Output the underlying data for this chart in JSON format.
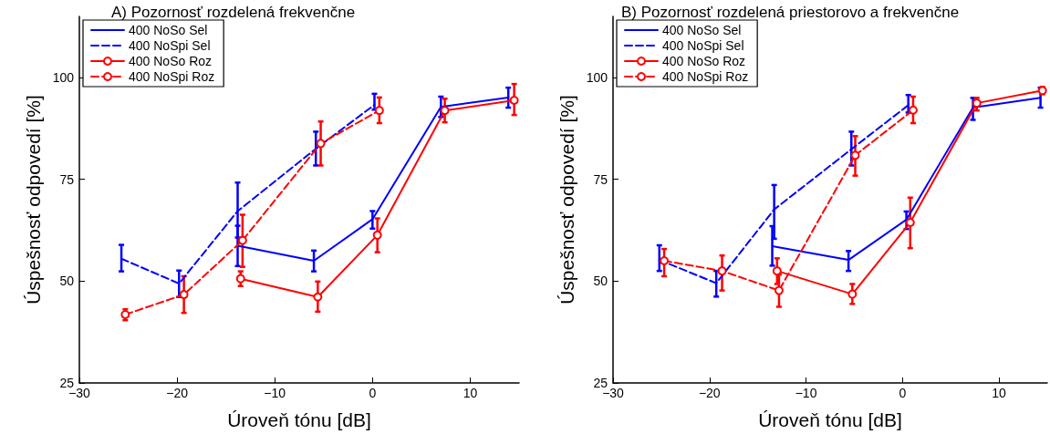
{
  "chart_data": [
    {
      "type": "line",
      "title": "A) Pozornosť rozdelená frekvenčne",
      "xlabel": "Úroveň tónu [dB]",
      "ylabel": "Úspešnosť odpovedí [%]",
      "xlim": [
        -30,
        15
      ],
      "xticks": [
        {
          "value": -30,
          "label": "−30"
        },
        {
          "value": -20,
          "label": "−20"
        },
        {
          "value": -10,
          "label": "−10"
        },
        {
          "value": 0,
          "label": "0"
        },
        {
          "value": 10,
          "label": "10"
        }
      ],
      "ylim": [
        25,
        115
      ],
      "yticks": [
        25,
        50,
        75,
        100
      ],
      "grid": false,
      "legend": "top left",
      "series": [
        {
          "name": "400 NoSo Sel",
          "color": "#0000ff",
          "line_style": "solid",
          "marker": "none",
          "x": [
            -13.8,
            -6.0,
            0,
            7.0,
            13.9
          ],
          "values": [
            58.7,
            55.0,
            65.2,
            92.8,
            95.1
          ],
          "errors": [
            [
              53.7,
              63.6
            ],
            [
              52.4,
              57.5
            ],
            [
              62.9,
              67.2
            ],
            [
              90.3,
              95.3
            ],
            [
              92.6,
              97.5
            ]
          ]
        },
        {
          "name": "400 NoSpi Sel",
          "color": "#0000ff",
          "line_style": "dashed",
          "marker": "none",
          "x": [
            -25.7,
            -19.8,
            -13.8,
            -5.8,
            0.2
          ],
          "values": [
            55.5,
            49.4,
            67.2,
            82.5,
            93.3
          ],
          "errors": [
            [
              52.4,
              58.9
            ],
            [
              46.1,
              52.6
            ],
            [
              60.7,
              74.2
            ],
            [
              78.4,
              86.7
            ],
            [
              92.1,
              96.0
            ]
          ]
        },
        {
          "name": "400 NoSo Roz",
          "color": "#ff0000",
          "line_style": "solid",
          "marker": "circle",
          "x": [
            -13.5,
            -5.6,
            0.5,
            7.4,
            14.5
          ],
          "values": [
            50.6,
            46.1,
            61.3,
            91.9,
            94.4
          ],
          "errors": [
            [
              48.8,
              52.4
            ],
            [
              42.5,
              49.9
            ],
            [
              57.1,
              65.4
            ],
            [
              89.0,
              94.8
            ],
            [
              90.8,
              98.4
            ]
          ]
        },
        {
          "name": "400 NoSpi Roz",
          "color": "#ff0000",
          "line_style": "dashed",
          "marker": "circle",
          "x": [
            -25.3,
            -19.3,
            -13.3,
            -5.3,
            0.7
          ],
          "values": [
            41.8,
            46.7,
            60.0,
            83.8,
            91.9
          ],
          "errors": [
            [
              40.4,
              43.1
            ],
            [
              42.2,
              51.2
            ],
            [
              53.5,
              66.3
            ],
            [
              78.4,
              89.2
            ],
            [
              88.8,
              95.1
            ]
          ]
        }
      ]
    },
    {
      "type": "line",
      "title": "B) Pozornosť rozdelená priestorovo a frekvenčne",
      "xlabel": "Úroveň tónu [dB]",
      "ylabel": "Úspešnosť odpovedí [%]",
      "xlim": [
        -30,
        15
      ],
      "xticks": [
        {
          "value": -30,
          "label": "−30"
        },
        {
          "value": -20,
          "label": "−20"
        },
        {
          "value": -10,
          "label": "−10"
        },
        {
          "value": 0,
          "label": "0"
        },
        {
          "value": 10,
          "label": "10"
        }
      ],
      "ylim": [
        25,
        115
      ],
      "yticks": [
        25,
        50,
        75,
        100
      ],
      "grid": false,
      "legend": "top left",
      "series": [
        {
          "name": "400 NoSo Sel",
          "color": "#0000ff",
          "line_style": "solid",
          "marker": "none",
          "x": [
            -13.5,
            -5.6,
            0.4,
            7.3,
            14.3
          ],
          "values": [
            58.6,
            55.2,
            65.1,
            92.6,
            95.0
          ],
          "errors": [
            [
              53.8,
              63.5
            ],
            [
              52.5,
              57.4
            ],
            [
              62.8,
              67.1
            ],
            [
              89.6,
              95.0
            ],
            [
              92.6,
              97.5
            ]
          ]
        },
        {
          "name": "400 NoSpi Sel",
          "color": "#0000ff",
          "line_style": "dashed",
          "marker": "none",
          "x": [
            -25.2,
            -19.3,
            -13.3,
            -5.3,
            0.6
          ],
          "values": [
            55.2,
            49.5,
            67.6,
            82.4,
            93.2
          ],
          "errors": [
            [
              52.5,
              58.8
            ],
            [
              46.2,
              52.5
            ],
            [
              60.4,
              73.6
            ],
            [
              78.4,
              86.7
            ],
            [
              91.4,
              95.7
            ]
          ]
        },
        {
          "name": "400 NoSo Roz",
          "color": "#ff0000",
          "line_style": "solid",
          "marker": "circle",
          "x": [
            -13.0,
            -5.2,
            0.8,
            7.7,
            14.5
          ],
          "values": [
            52.5,
            46.8,
            64.4,
            93.7,
            96.8
          ],
          "errors": [
            [
              49.3,
              55.6
            ],
            [
              44.4,
              49.3
            ],
            [
              58.1,
              70.5
            ],
            [
              91.9,
              95.0
            ],
            [
              95.9,
              97.7
            ]
          ]
        },
        {
          "name": "400 NoSpi Roz",
          "color": "#ff0000",
          "line_style": "dashed",
          "marker": "circle",
          "x": [
            -24.7,
            -18.7,
            -12.8,
            -4.9,
            1.1
          ],
          "values": [
            55.0,
            52.5,
            47.7,
            80.9,
            92.0
          ],
          "errors": [
            [
              51.2,
              57.9
            ],
            [
              47.7,
              56.3
            ],
            [
              43.7,
              51.6
            ],
            [
              75.9,
              85.6
            ],
            [
              88.8,
              95.3
            ]
          ]
        }
      ]
    }
  ]
}
